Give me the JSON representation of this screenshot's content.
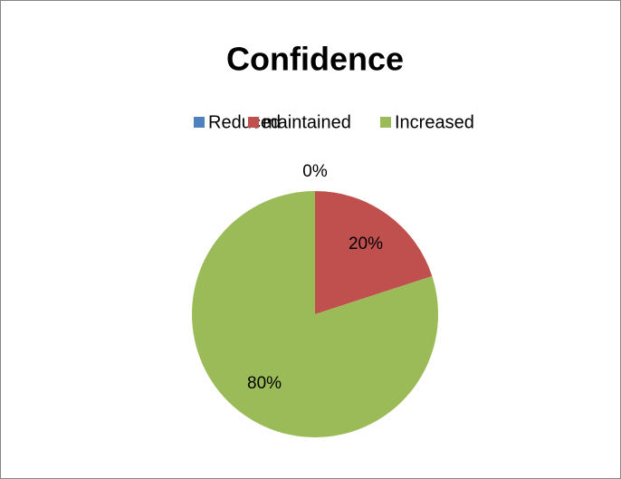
{
  "chart_data": {
    "type": "pie",
    "title": "Confidence",
    "categories": [
      "Reduced",
      "maintained",
      "Increased"
    ],
    "values": [
      0,
      20,
      80
    ],
    "value_labels": [
      "0%",
      "20%",
      "80%"
    ],
    "colors": [
      "#4f81bd",
      "#c0504d",
      "#9bbb59"
    ],
    "legend": "top"
  }
}
